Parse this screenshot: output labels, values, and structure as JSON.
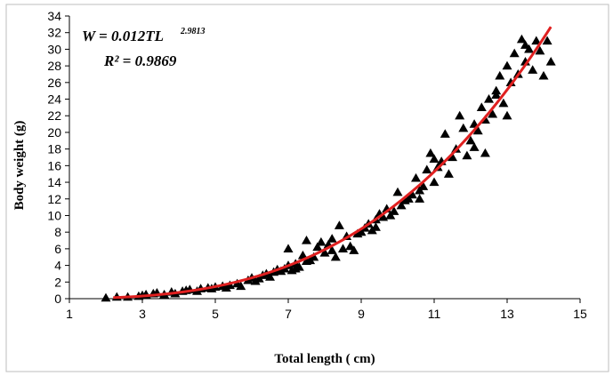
{
  "chart_data": {
    "type": "scatter",
    "xlabel": "Total length ( cm)",
    "ylabel": "Body weight (g)",
    "xlim": [
      1,
      15
    ],
    "ylim": [
      0,
      34
    ],
    "x_ticks": [
      "1",
      "3",
      "5",
      "7",
      "9",
      "11",
      "13",
      "15"
    ],
    "y_ticks": [
      "0",
      "2",
      "4",
      "6",
      "8",
      "10",
      "12",
      "14",
      "16",
      "18",
      "20",
      "22",
      "24",
      "26",
      "28",
      "30",
      "32",
      "34"
    ],
    "equation": {
      "main": "W = 0.012TL",
      "exponent": "2.9813",
      "r2_label": "R² = 0.9869"
    },
    "fit": {
      "a": 0.012,
      "b": 2.9813,
      "x_range": [
        2.2,
        14.2
      ],
      "color": "#e02020"
    },
    "marker_color": "#000000",
    "grid": false,
    "points": [
      [
        2.0,
        0.1
      ],
      [
        2.3,
        0.2
      ],
      [
        2.6,
        0.2
      ],
      [
        2.9,
        0.3
      ],
      [
        3.0,
        0.4
      ],
      [
        3.1,
        0.5
      ],
      [
        3.3,
        0.6
      ],
      [
        3.4,
        0.7
      ],
      [
        3.6,
        0.5
      ],
      [
        3.8,
        0.8
      ],
      [
        3.9,
        0.6
      ],
      [
        4.1,
        0.9
      ],
      [
        4.2,
        1.0
      ],
      [
        4.3,
        1.1
      ],
      [
        4.5,
        0.9
      ],
      [
        4.6,
        1.2
      ],
      [
        4.8,
        1.3
      ],
      [
        4.9,
        1.2
      ],
      [
        5.0,
        1.4
      ],
      [
        5.2,
        1.5
      ],
      [
        5.3,
        1.3
      ],
      [
        5.4,
        1.6
      ],
      [
        5.6,
        1.8
      ],
      [
        5.7,
        1.5
      ],
      [
        5.9,
        2.2
      ],
      [
        6.0,
        2.5
      ],
      [
        6.1,
        2.1
      ],
      [
        6.2,
        2.4
      ],
      [
        6.3,
        2.8
      ],
      [
        6.4,
        3.0
      ],
      [
        6.5,
        2.6
      ],
      [
        6.6,
        3.2
      ],
      [
        6.7,
        3.5
      ],
      [
        6.8,
        3.3
      ],
      [
        6.9,
        3.6
      ],
      [
        7.0,
        6.0
      ],
      [
        7.0,
        4.0
      ],
      [
        7.1,
        3.4
      ],
      [
        7.2,
        4.2
      ],
      [
        7.3,
        3.8
      ],
      [
        7.4,
        5.2
      ],
      [
        7.5,
        4.5
      ],
      [
        7.5,
        7.0
      ],
      [
        7.6,
        4.6
      ],
      [
        7.7,
        5.0
      ],
      [
        7.8,
        6.2
      ],
      [
        7.9,
        6.8
      ],
      [
        8.0,
        5.5
      ],
      [
        8.1,
        6.5
      ],
      [
        8.2,
        7.2
      ],
      [
        8.3,
        5.0
      ],
      [
        8.4,
        8.8
      ],
      [
        8.5,
        6.0
      ],
      [
        8.6,
        7.5
      ],
      [
        8.7,
        6.3
      ],
      [
        8.8,
        5.8
      ],
      [
        8.9,
        7.8
      ],
      [
        9.0,
        8.0
      ],
      [
        9.1,
        8.5
      ],
      [
        9.2,
        9.0
      ],
      [
        9.3,
        8.2
      ],
      [
        9.4,
        9.5
      ],
      [
        9.5,
        10.2
      ],
      [
        9.6,
        9.8
      ],
      [
        9.7,
        10.8
      ],
      [
        9.8,
        10.0
      ],
      [
        9.9,
        10.5
      ],
      [
        10.0,
        12.8
      ],
      [
        10.1,
        11.2
      ],
      [
        10.2,
        11.8
      ],
      [
        10.3,
        12.0
      ],
      [
        10.4,
        12.5
      ],
      [
        10.5,
        14.5
      ],
      [
        10.6,
        13.0
      ],
      [
        10.7,
        13.5
      ],
      [
        10.8,
        15.5
      ],
      [
        10.9,
        17.5
      ],
      [
        11.0,
        14.0
      ],
      [
        11.1,
        15.8
      ],
      [
        11.2,
        16.5
      ],
      [
        11.3,
        19.8
      ],
      [
        11.4,
        15.0
      ],
      [
        11.5,
        17.0
      ],
      [
        11.6,
        18.0
      ],
      [
        11.7,
        22.0
      ],
      [
        11.8,
        20.5
      ],
      [
        11.9,
        17.2
      ],
      [
        12.0,
        19.0
      ],
      [
        12.1,
        21.0
      ],
      [
        12.2,
        20.2
      ],
      [
        12.3,
        23.0
      ],
      [
        12.4,
        21.5
      ],
      [
        12.5,
        24.0
      ],
      [
        12.6,
        22.2
      ],
      [
        12.7,
        25.0
      ],
      [
        12.8,
        26.8
      ],
      [
        12.9,
        23.5
      ],
      [
        13.0,
        28.0
      ],
      [
        13.1,
        26.0
      ],
      [
        13.2,
        29.5
      ],
      [
        13.3,
        27.0
      ],
      [
        13.4,
        31.2
      ],
      [
        13.5,
        28.5
      ],
      [
        13.6,
        30.0
      ],
      [
        13.7,
        27.5
      ],
      [
        13.8,
        31.0
      ],
      [
        13.9,
        29.8
      ],
      [
        14.0,
        26.8
      ],
      [
        14.1,
        31.0
      ],
      [
        14.2,
        28.5
      ],
      [
        12.4,
        17.5
      ],
      [
        12.1,
        18.2
      ],
      [
        11.0,
        16.8
      ],
      [
        10.6,
        12.0
      ],
      [
        9.4,
        8.6
      ],
      [
        8.2,
        5.8
      ],
      [
        7.2,
        3.6
      ],
      [
        13.0,
        22.0
      ],
      [
        13.5,
        30.5
      ],
      [
        12.7,
        24.5
      ]
    ]
  }
}
